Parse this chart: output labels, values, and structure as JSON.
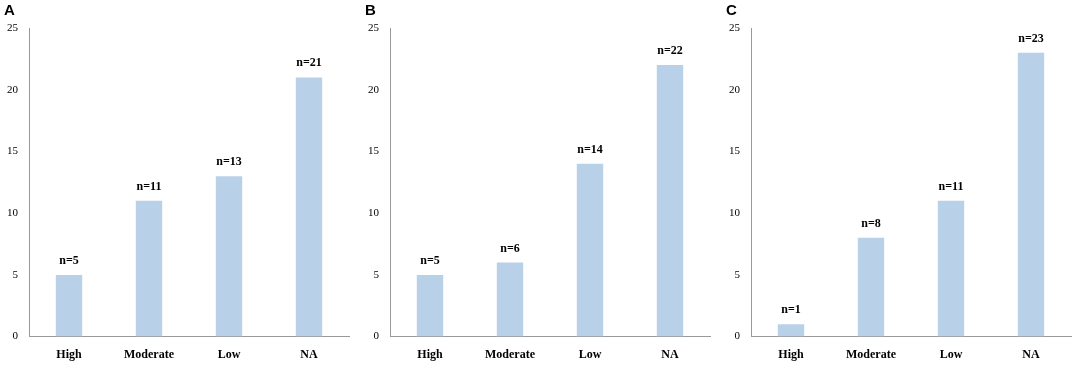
{
  "chart_data": [
    {
      "type": "bar",
      "title": "A",
      "categories": [
        "High",
        "Moderate",
        "Low",
        "NA"
      ],
      "values": [
        5,
        11,
        13,
        21
      ],
      "value_labels": [
        "n=5",
        "n=11",
        "n=13",
        "n=21"
      ],
      "color": "#b8d0e8",
      "ylim": [
        0,
        25
      ],
      "yticks": [
        0,
        5,
        10,
        15,
        20,
        25
      ]
    },
    {
      "type": "bar",
      "title": "B",
      "categories": [
        "High",
        "Moderate",
        "Low",
        "NA"
      ],
      "values": [
        5,
        6,
        14,
        22
      ],
      "value_labels": [
        "n=5",
        "n=6",
        "n=14",
        "n=22"
      ],
      "color": "#b8d0e8",
      "ylim": [
        0,
        25
      ],
      "yticks": [
        0,
        5,
        10,
        15,
        20,
        25
      ]
    },
    {
      "type": "bar",
      "title": "C",
      "categories": [
        "High",
        "Moderate",
        "Low",
        "NA"
      ],
      "values": [
        1,
        8,
        11,
        23
      ],
      "value_labels": [
        "n=1",
        "n=8",
        "n=11",
        "n=23"
      ],
      "color": "#b8d0e8",
      "ylim": [
        0,
        25
      ],
      "yticks": [
        0,
        5,
        10,
        15,
        20,
        25
      ]
    }
  ]
}
